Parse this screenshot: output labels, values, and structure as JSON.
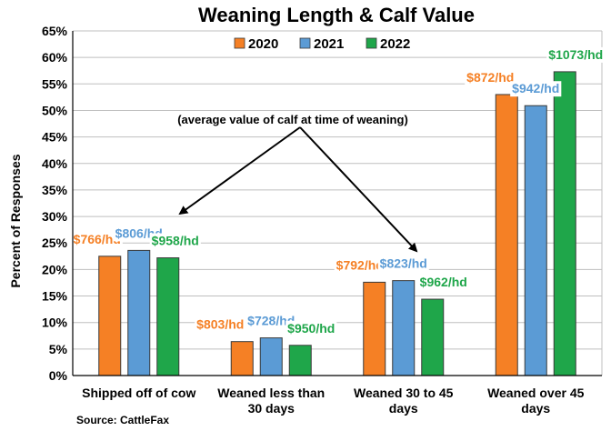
{
  "chart_data": {
    "type": "bar",
    "title": "Weaning Length & Calf Value",
    "ylabel": "Percent of Responses",
    "xlabel": "",
    "ylim": [
      0,
      65
    ],
    "yticks": [
      "0%",
      "5%",
      "10%",
      "15%",
      "20%",
      "25%",
      "30%",
      "35%",
      "40%",
      "45%",
      "50%",
      "55%",
      "60%",
      "65%"
    ],
    "grid": true,
    "legend_position": "top",
    "categories": [
      [
        "Shipped off of cow"
      ],
      [
        "Weaned less than",
        "30 days"
      ],
      [
        "Weaned 30 to 45",
        "days"
      ],
      [
        "Weaned over 45",
        "days"
      ]
    ],
    "series": [
      {
        "name": "2020",
        "color": "#F58025",
        "values": [
          22.5,
          6.4,
          17.6,
          53.0
        ],
        "labels": [
          "$766/hd",
          "$803/hd",
          "$792/hd",
          "$872/hd"
        ]
      },
      {
        "name": "2021",
        "color": "#5B9BD5",
        "values": [
          23.6,
          7.1,
          17.9,
          50.9
        ],
        "labels": [
          "$806/hd",
          "$728/hd",
          "$823/hd",
          "$942/hd"
        ]
      },
      {
        "name": "2022",
        "color": "#1FA64A",
        "values": [
          22.2,
          5.7,
          14.4,
          57.3
        ],
        "labels": [
          "$958/hd",
          "$950/hd",
          "$962/hd",
          "$1073/hd"
        ]
      }
    ],
    "annotation": "(average value of calf at time of weaning)",
    "source": "Source: CattleFax"
  }
}
